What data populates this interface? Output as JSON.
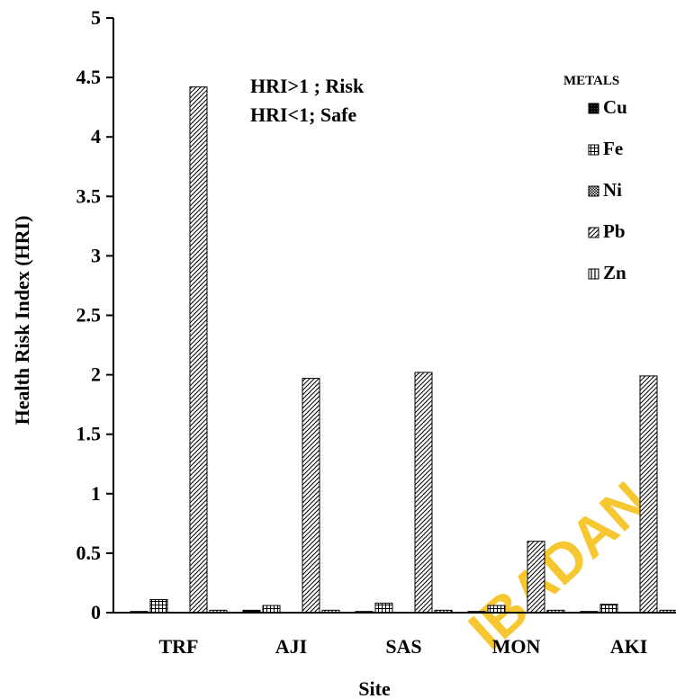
{
  "chart_data": {
    "type": "bar",
    "title": "",
    "xlabel": "Site",
    "ylabel": "Health Risk Index (HRI)",
    "ylim": [
      0,
      5
    ],
    "yticks": [
      "0",
      "0.5",
      "1",
      "1.5",
      "2",
      "2.5",
      "3",
      "3.5",
      "4",
      "4.5",
      "5"
    ],
    "categories": [
      "TRF",
      "AJI",
      "SAS",
      "MON",
      "AKI"
    ],
    "series": [
      {
        "name": "Cu",
        "values": [
          0.01,
          0.02,
          0.01,
          0.01,
          0.01
        ]
      },
      {
        "name": "Fe",
        "values": [
          0.11,
          0.06,
          0.08,
          0.06,
          0.07
        ]
      },
      {
        "name": "Ni",
        "values": [
          0.0,
          0.0,
          0.0,
          0.0,
          0.0
        ]
      },
      {
        "name": "Pb",
        "values": [
          4.42,
          1.97,
          2.02,
          0.6,
          1.99
        ]
      },
      {
        "name": "Zn",
        "values": [
          0.02,
          0.02,
          0.02,
          0.02,
          0.02
        ]
      }
    ],
    "legend_title": "METALS",
    "legend_position": "top-right",
    "grid": false,
    "annotations": [
      "HRI>1 ; Risk",
      "HRI<1; Safe"
    ]
  },
  "watermark": "IBADAN",
  "colors": {
    "axis": "#000000",
    "watermark": "#f6c21b"
  }
}
